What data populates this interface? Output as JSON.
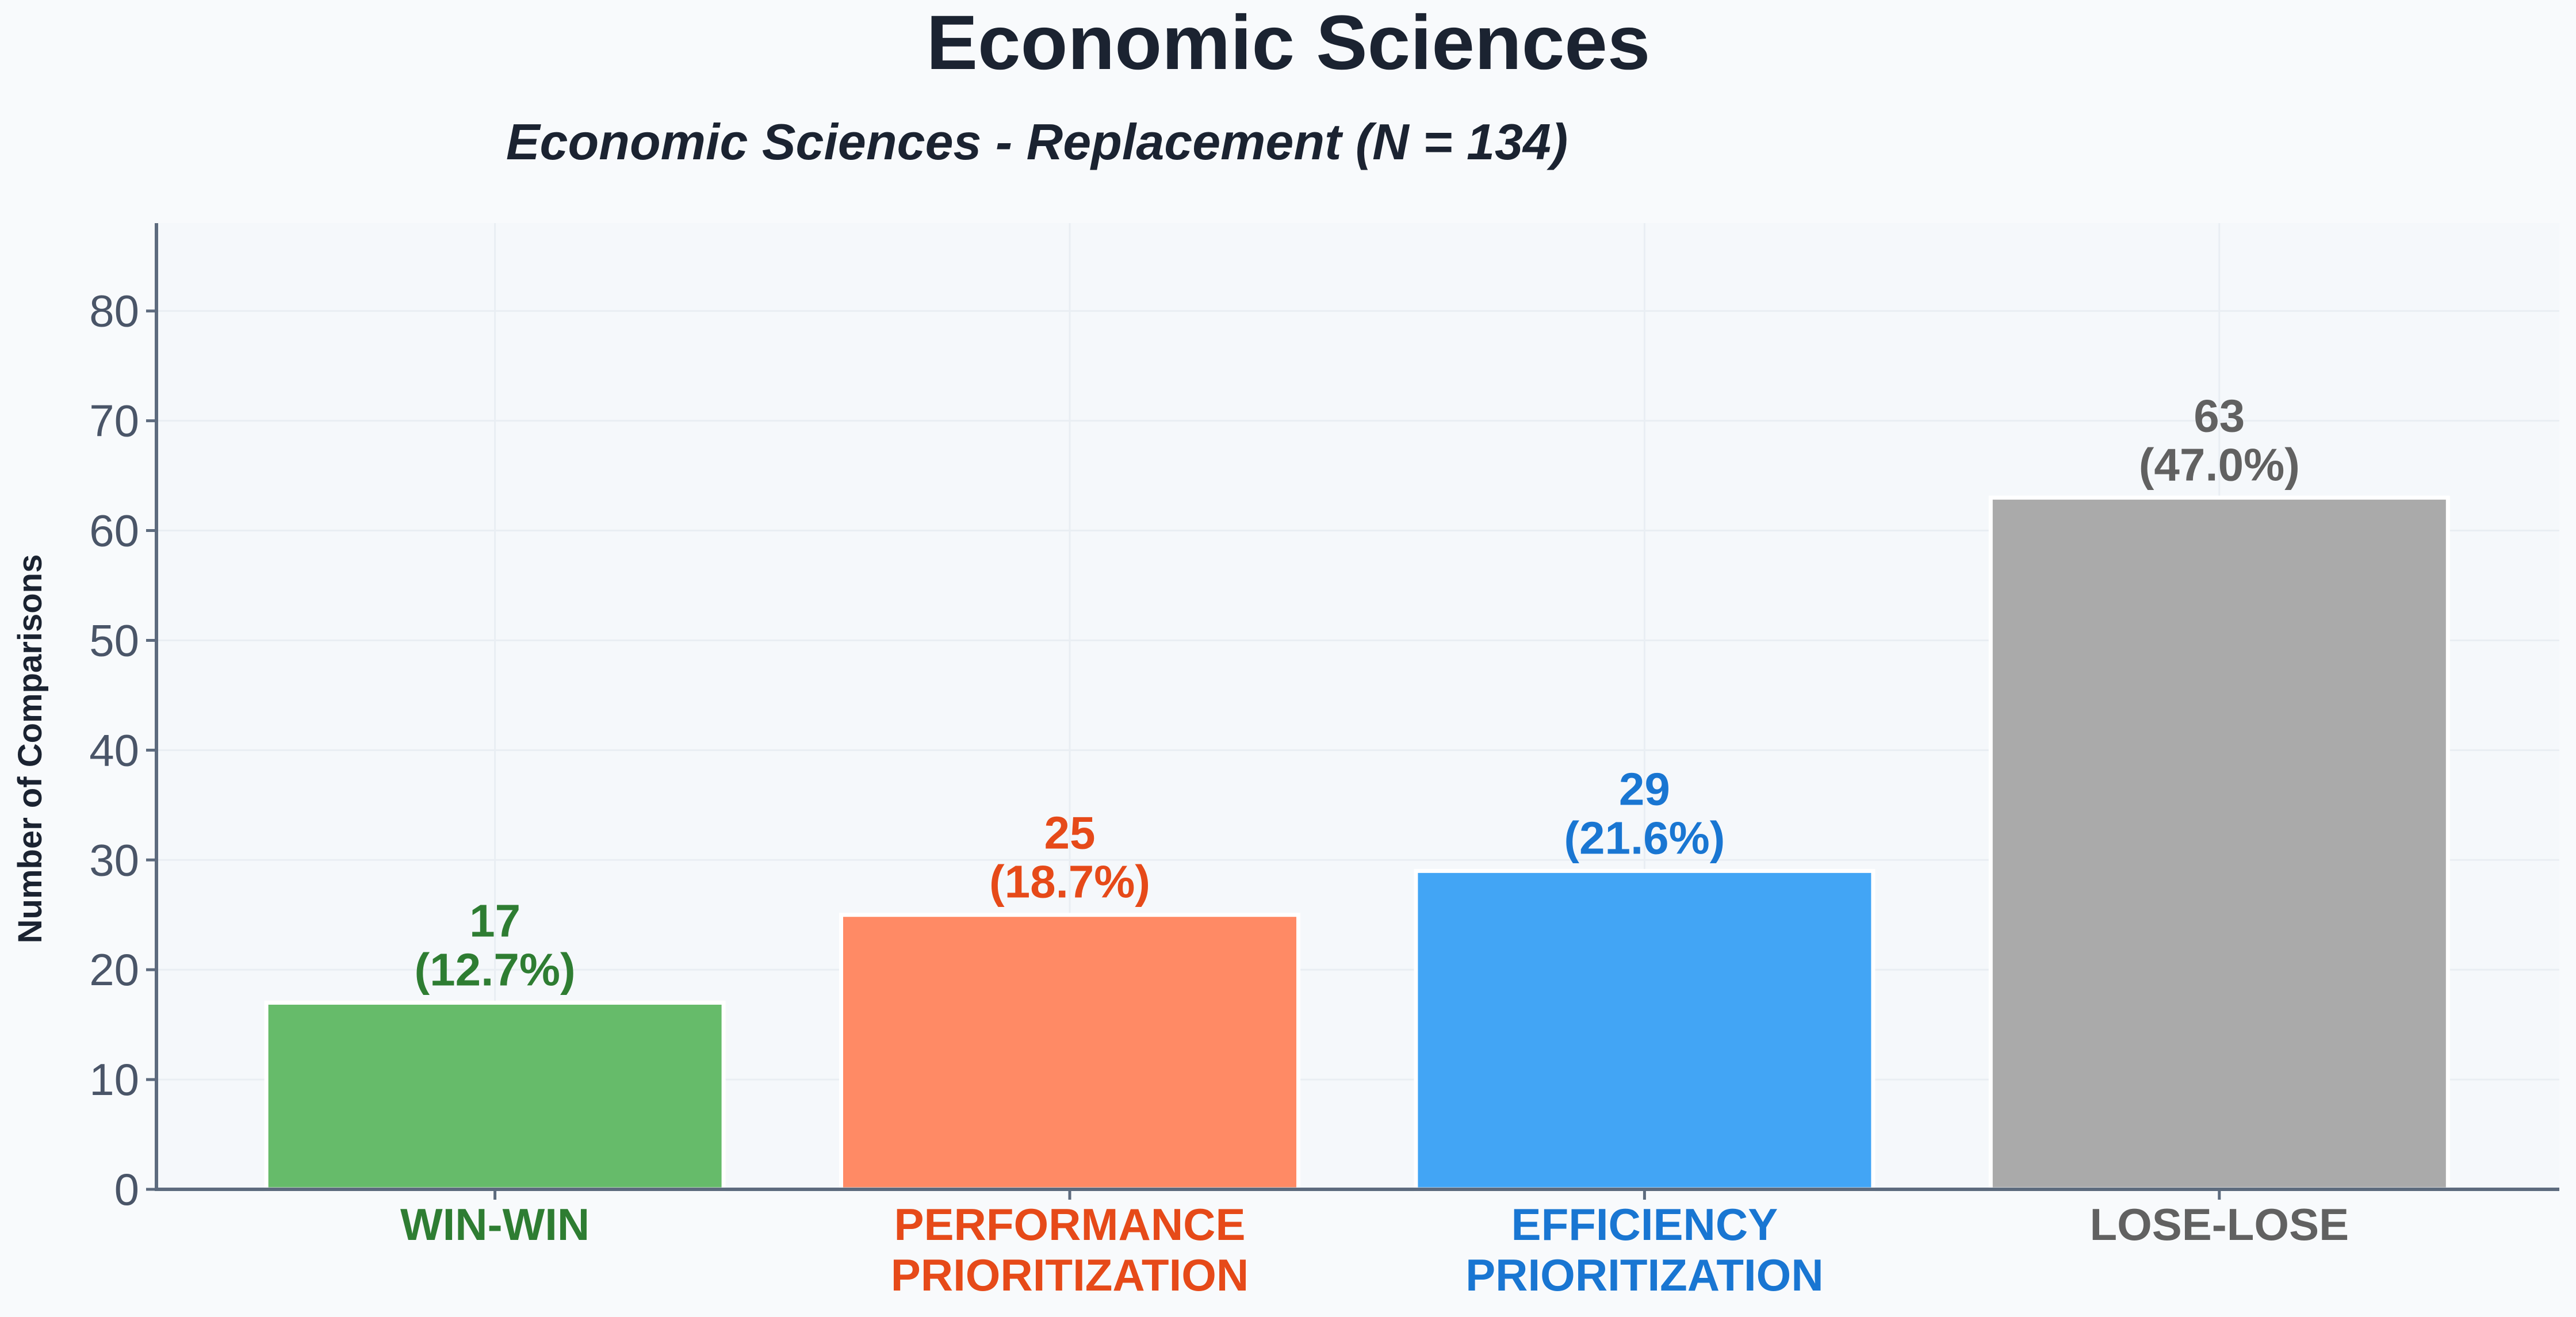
{
  "chart_data": {
    "type": "bar",
    "title": "Economic Sciences",
    "subtitle": "Economic Sciences - Replacement (N = 134)",
    "xlabel": "",
    "ylabel": "Number of Comparisons",
    "ylim": [
      0,
      88
    ],
    "yticks": [
      0,
      10,
      20,
      30,
      40,
      50,
      60,
      70,
      80
    ],
    "grid": true,
    "categories": [
      "WIN-WIN",
      "PERFORMANCE\nPRIORITIZATION",
      "EFFICIENCY\nPRIORITIZATION",
      "LOSE-LOSE"
    ],
    "values": [
      17,
      25,
      29,
      63
    ],
    "value_labels": [
      "17",
      "25",
      "29",
      "63"
    ],
    "percent_labels": [
      "(12.7%)",
      "(18.7%)",
      "(21.6%)",
      "(47.0%)"
    ],
    "bar_colors": [
      "#66bb6a",
      "#ff8a65",
      "#42a5f5",
      "#aaaaaa"
    ],
    "label_colors": [
      "#2e7d32",
      "#e64a19",
      "#1976d2",
      "#616161"
    ]
  },
  "colors": {
    "background": "#f8fafc",
    "plot_background": "#f5f8fb",
    "title": "#1b2331",
    "axis": "#5d6b7e",
    "tick_label": "#4a5568",
    "grid": "#e9eef3"
  }
}
